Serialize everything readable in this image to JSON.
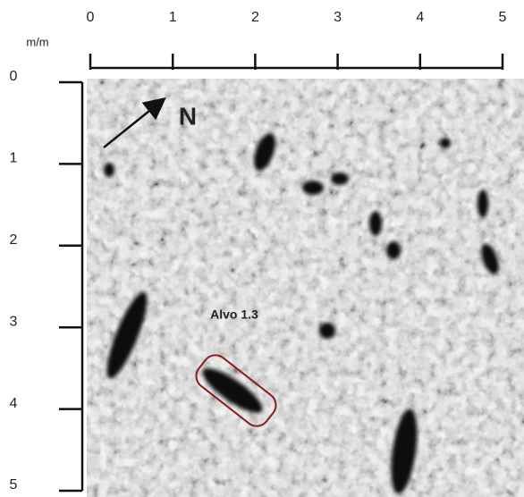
{
  "axes": {
    "unit": "m/m",
    "xlim": [
      0,
      5
    ],
    "ylim": [
      0,
      5
    ],
    "xticks": [
      0,
      1,
      2,
      3,
      4,
      5
    ],
    "yticks": [
      0,
      1,
      2,
      3,
      4,
      5
    ]
  },
  "annotations": {
    "north": "N",
    "target": "Alvo 1.3"
  }
}
